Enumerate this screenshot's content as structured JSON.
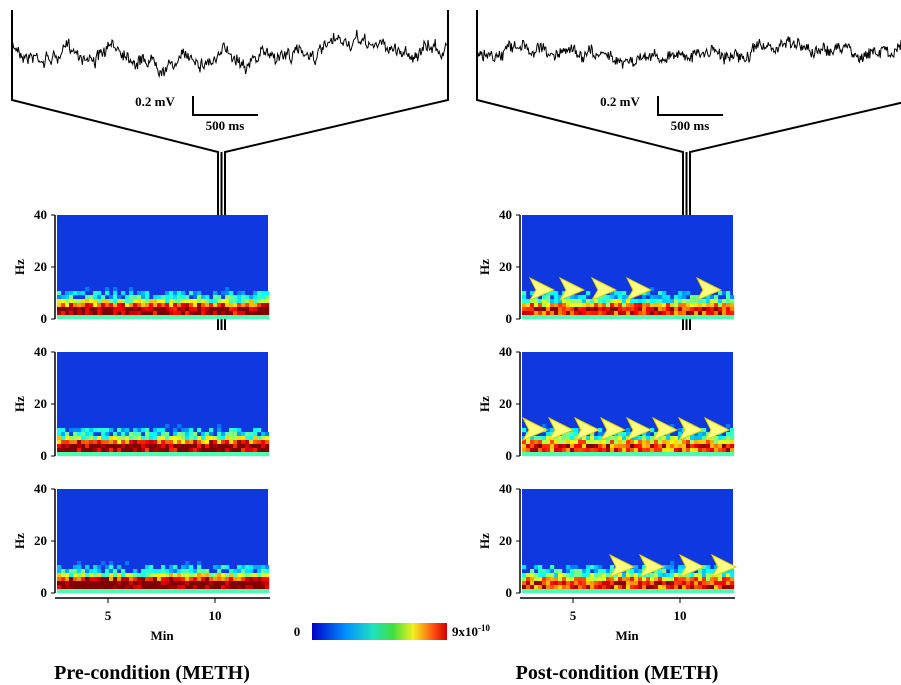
{
  "panels": [
    {
      "title": "Pre-condition (METH)",
      "scale_bar": {
        "amplitude": "0.2 mV",
        "time": "500 ms"
      },
      "spectrograms": [
        {
          "y_axis_label": "Hz",
          "y_ticks": [
            40,
            20,
            0
          ]
        },
        {
          "y_axis_label": "Hz",
          "y_ticks": [
            40,
            20,
            0
          ]
        },
        {
          "y_axis_label": "Hz",
          "y_ticks": [
            40,
            20,
            0
          ]
        }
      ],
      "x_axis": {
        "ticks": [
          5,
          10
        ],
        "label": "Min"
      }
    },
    {
      "title": "Post-condition (METH)",
      "scale_bar": {
        "amplitude": "0.2 mV",
        "time": "500 ms"
      },
      "spectrograms": [
        {
          "y_axis_label": "Hz",
          "y_ticks": [
            40,
            20,
            0
          ]
        },
        {
          "y_axis_label": "Hz",
          "y_ticks": [
            40,
            20,
            0
          ]
        },
        {
          "y_axis_label": "Hz",
          "y_ticks": [
            40,
            20,
            0
          ]
        }
      ],
      "x_axis": {
        "ticks": [
          5,
          10
        ],
        "label": "Min"
      }
    }
  ],
  "colorbar": {
    "min": "0",
    "max_base": "9x10",
    "max_exponent": "-10"
  }
}
